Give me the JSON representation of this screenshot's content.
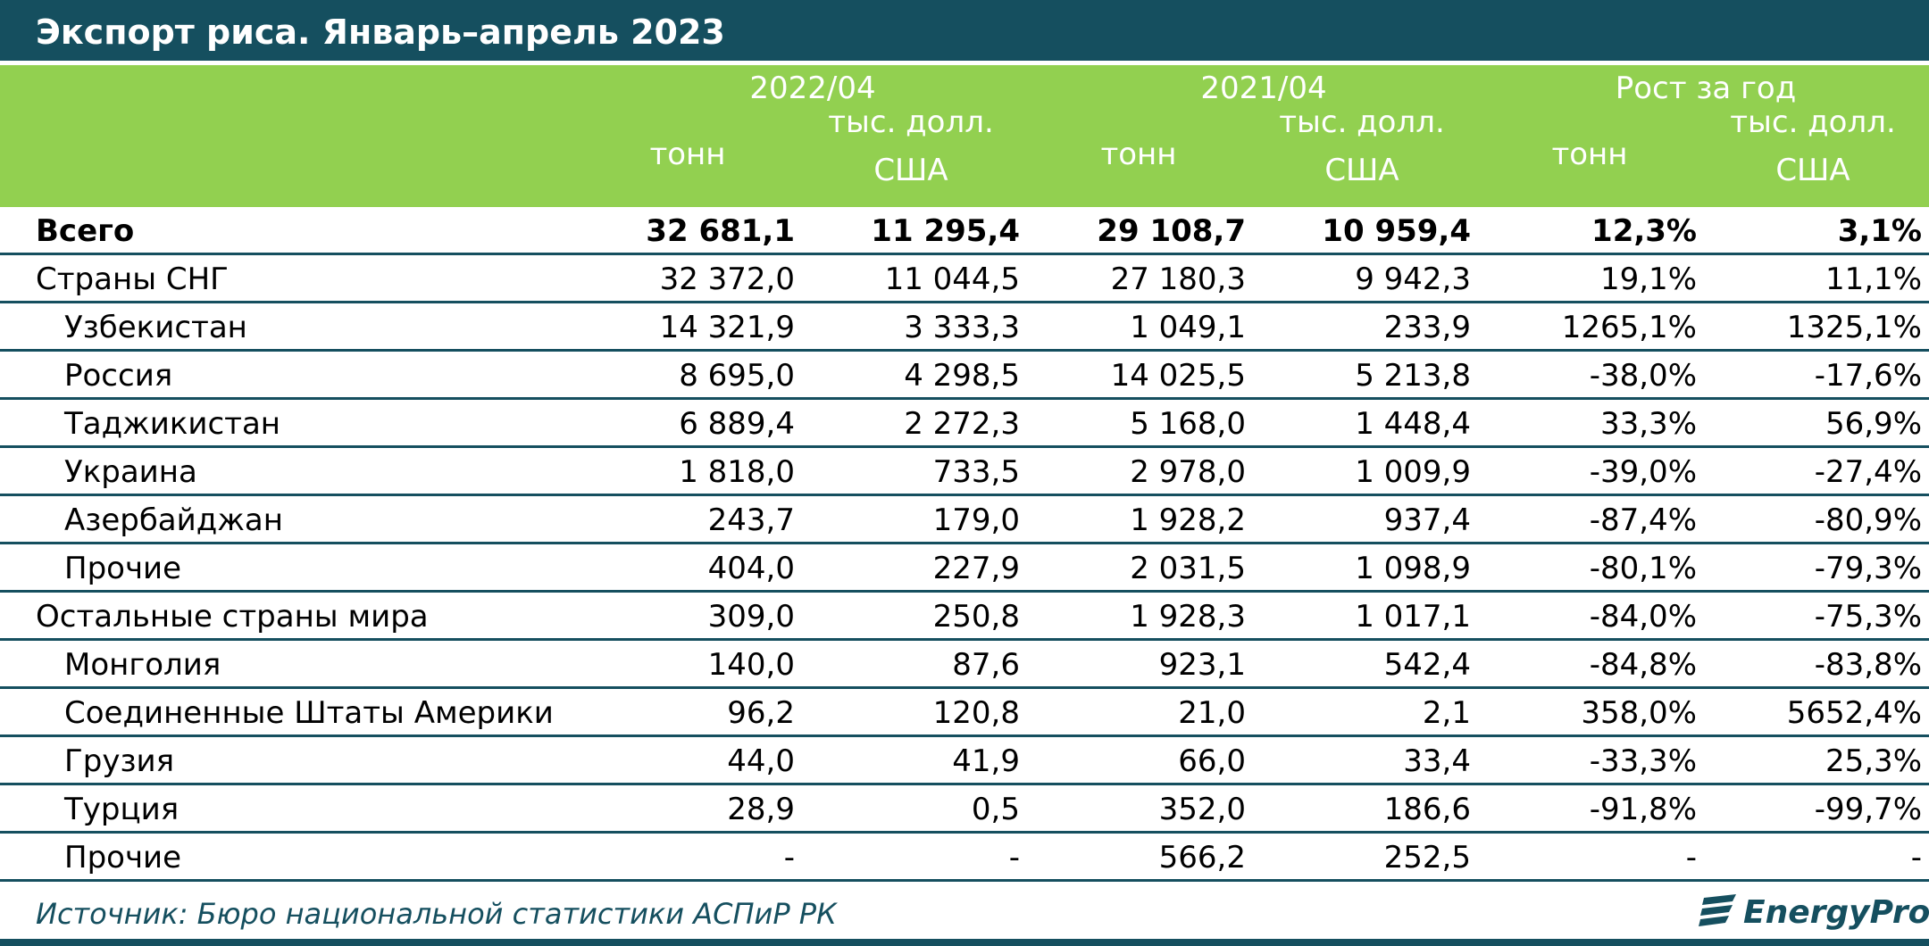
{
  "title": "Экспорт риса. Январь–апрель 2023",
  "header": {
    "period1": "2022/04",
    "period2": "2021/04",
    "growth": "Рост за год",
    "tons": "тонн",
    "usd_line1": "тыс. долл.",
    "usd_line2": "США"
  },
  "rows": [
    {
      "name": "Всего",
      "bold": true,
      "indent": false,
      "values": [
        "32 681,1",
        "11 295,4",
        "29 108,7",
        "10 959,4",
        "12,3%",
        "3,1%"
      ]
    },
    {
      "name": "Страны СНГ",
      "bold": false,
      "indent": false,
      "values": [
        "32 372,0",
        "11 044,5",
        "27 180,3",
        "9 942,3",
        "19,1%",
        "11,1%"
      ]
    },
    {
      "name": "Узбекистан",
      "bold": false,
      "indent": true,
      "values": [
        "14 321,9",
        "3 333,3",
        "1 049,1",
        "233,9",
        "1265,1%",
        "1325,1%"
      ]
    },
    {
      "name": "Россия",
      "bold": false,
      "indent": true,
      "values": [
        "8 695,0",
        "4 298,5",
        "14 025,5",
        "5 213,8",
        "-38,0%",
        "-17,6%"
      ]
    },
    {
      "name": "Таджикистан",
      "bold": false,
      "indent": true,
      "values": [
        "6 889,4",
        "2 272,3",
        "5 168,0",
        "1 448,4",
        "33,3%",
        "56,9%"
      ]
    },
    {
      "name": "Украина",
      "bold": false,
      "indent": true,
      "values": [
        "1 818,0",
        "733,5",
        "2 978,0",
        "1 009,9",
        "-39,0%",
        "-27,4%"
      ]
    },
    {
      "name": "Азербайджан",
      "bold": false,
      "indent": true,
      "values": [
        "243,7",
        "179,0",
        "1 928,2",
        "937,4",
        "-87,4%",
        "-80,9%"
      ]
    },
    {
      "name": "Прочие",
      "bold": false,
      "indent": true,
      "values": [
        "404,0",
        "227,9",
        "2 031,5",
        "1 098,9",
        "-80,1%",
        "-79,3%"
      ]
    },
    {
      "name": "Остальные страны мира",
      "bold": false,
      "indent": false,
      "values": [
        "309,0",
        "250,8",
        "1 928,3",
        "1 017,1",
        "-84,0%",
        "-75,3%"
      ]
    },
    {
      "name": "Монголия",
      "bold": false,
      "indent": true,
      "values": [
        "140,0",
        "87,6",
        "923,1",
        "542,4",
        "-84,8%",
        "-83,8%"
      ]
    },
    {
      "name": "Соединенные Штаты Америки",
      "bold": false,
      "indent": true,
      "values": [
        "96,2",
        "120,8",
        "21,0",
        "2,1",
        "358,0%",
        "5652,4%"
      ]
    },
    {
      "name": "Грузия",
      "bold": false,
      "indent": true,
      "values": [
        "44,0",
        "41,9",
        "66,0",
        "33,4",
        "-33,3%",
        "25,3%"
      ]
    },
    {
      "name": "Турция",
      "bold": false,
      "indent": true,
      "values": [
        "28,9",
        "0,5",
        "352,0",
        "186,6",
        "-91,8%",
        "-99,7%"
      ]
    },
    {
      "name": "Прочие",
      "bold": false,
      "indent": true,
      "values": [
        "-",
        "-",
        "566,2",
        "252,5",
        "-",
        "-"
      ]
    }
  ],
  "source": "Источник: Бюро национальной статистики АСПиР РК",
  "logo_text": "EnergyProm",
  "colors": {
    "dark_teal": "#154f5f",
    "green": "#92d050"
  }
}
